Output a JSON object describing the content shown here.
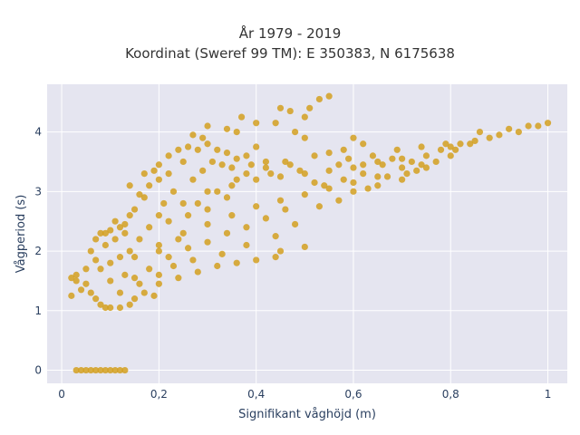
{
  "chart_data": {
    "type": "scatter",
    "title_lines": [
      "År 1979 - 2019",
      "Koordinat (Sweref 99 TM): E 350383, N 6175638"
    ],
    "xlabel": "Signifikant våghöjd (m)",
    "ylabel": "Vågperiod (s)",
    "xlim": [
      -0.03,
      1.04
    ],
    "ylim": [
      -0.22,
      4.8
    ],
    "x_ticks": [
      0,
      0.2,
      0.4,
      0.6,
      0.8,
      1
    ],
    "x_tick_labels": [
      "0",
      "0,2",
      "0,4",
      "0,6",
      "0,8",
      "1"
    ],
    "y_ticks": [
      0,
      1,
      2,
      3,
      4
    ],
    "y_tick_labels": [
      "0",
      "1",
      "2",
      "3",
      "4"
    ],
    "grid": true,
    "marker_color": "#D4A020",
    "plot_background": "#E5E5F0",
    "points": [
      [
        0.03,
        0.0
      ],
      [
        0.04,
        0.0
      ],
      [
        0.05,
        0.0
      ],
      [
        0.06,
        0.0
      ],
      [
        0.07,
        0.0
      ],
      [
        0.08,
        0.0
      ],
      [
        0.09,
        0.0
      ],
      [
        0.1,
        0.0
      ],
      [
        0.11,
        0.0
      ],
      [
        0.12,
        0.0
      ],
      [
        0.13,
        0.0
      ],
      [
        0.02,
        1.55
      ],
      [
        0.03,
        1.5
      ],
      [
        0.03,
        1.6
      ],
      [
        0.02,
        1.25
      ],
      [
        0.04,
        1.35
      ],
      [
        0.05,
        1.45
      ],
      [
        0.06,
        1.3
      ],
      [
        0.07,
        1.2
      ],
      [
        0.08,
        1.1
      ],
      [
        0.09,
        1.05
      ],
      [
        0.1,
        1.05
      ],
      [
        0.12,
        1.05
      ],
      [
        0.14,
        1.1
      ],
      [
        0.06,
        2.0
      ],
      [
        0.07,
        2.2
      ],
      [
        0.08,
        2.3
      ],
      [
        0.1,
        2.35
      ],
      [
        0.12,
        2.4
      ],
      [
        0.11,
        2.5
      ],
      [
        0.13,
        2.3
      ],
      [
        0.14,
        2.6
      ],
      [
        0.15,
        2.7
      ],
      [
        0.17,
        2.9
      ],
      [
        0.18,
        3.1
      ],
      [
        0.19,
        3.35
      ],
      [
        0.2,
        3.45
      ],
      [
        0.22,
        3.6
      ],
      [
        0.24,
        3.7
      ],
      [
        0.26,
        3.75
      ],
      [
        0.28,
        3.7
      ],
      [
        0.3,
        3.8
      ],
      [
        0.32,
        3.7
      ],
      [
        0.34,
        3.65
      ],
      [
        0.36,
        3.55
      ],
      [
        0.38,
        3.6
      ],
      [
        0.4,
        3.75
      ],
      [
        0.27,
        3.95
      ],
      [
        0.29,
        3.9
      ],
      [
        0.3,
        4.1
      ],
      [
        0.34,
        4.05
      ],
      [
        0.36,
        4.0
      ],
      [
        0.37,
        4.25
      ],
      [
        0.4,
        4.15
      ],
      [
        0.44,
        4.15
      ],
      [
        0.45,
        4.4
      ],
      [
        0.47,
        4.35
      ],
      [
        0.48,
        4.0
      ],
      [
        0.5,
        3.9
      ],
      [
        0.5,
        4.25
      ],
      [
        0.51,
        4.4
      ],
      [
        0.53,
        4.55
      ],
      [
        0.55,
        4.6
      ],
      [
        0.58,
        3.7
      ],
      [
        0.6,
        3.9
      ],
      [
        0.62,
        3.8
      ],
      [
        0.15,
        1.2
      ],
      [
        0.17,
        1.3
      ],
      [
        0.2,
        1.45
      ],
      [
        0.24,
        1.55
      ],
      [
        0.28,
        1.65
      ],
      [
        0.32,
        1.75
      ],
      [
        0.36,
        1.8
      ],
      [
        0.4,
        1.85
      ],
      [
        0.44,
        1.9
      ],
      [
        0.45,
        2.0
      ],
      [
        0.5,
        2.07
      ],
      [
        0.15,
        1.9
      ],
      [
        0.2,
        2.1
      ],
      [
        0.25,
        2.3
      ],
      [
        0.3,
        2.45
      ],
      [
        0.35,
        2.6
      ],
      [
        0.4,
        2.75
      ],
      [
        0.45,
        2.85
      ],
      [
        0.5,
        2.95
      ],
      [
        0.55,
        3.05
      ],
      [
        0.6,
        3.15
      ],
      [
        0.65,
        3.25
      ],
      [
        0.7,
        3.4
      ],
      [
        0.72,
        3.5
      ],
      [
        0.75,
        3.6
      ],
      [
        0.78,
        3.7
      ],
      [
        0.8,
        3.75
      ],
      [
        0.82,
        3.8
      ],
      [
        0.2,
        2.6
      ],
      [
        0.25,
        2.8
      ],
      [
        0.3,
        3.0
      ],
      [
        0.35,
        3.1
      ],
      [
        0.4,
        3.2
      ],
      [
        0.45,
        3.25
      ],
      [
        0.5,
        3.3
      ],
      [
        0.55,
        3.35
      ],
      [
        0.6,
        3.4
      ],
      [
        0.65,
        3.5
      ],
      [
        0.7,
        3.55
      ],
      [
        0.6,
        3.0
      ],
      [
        0.65,
        3.1
      ],
      [
        0.7,
        3.2
      ],
      [
        0.75,
        3.4
      ],
      [
        0.8,
        3.6
      ],
      [
        0.85,
        3.85
      ],
      [
        0.86,
        4.0
      ],
      [
        0.88,
        3.9
      ],
      [
        0.9,
        3.95
      ],
      [
        0.92,
        4.05
      ],
      [
        0.94,
        4.0
      ],
      [
        0.96,
        4.1
      ],
      [
        0.98,
        4.1
      ],
      [
        1.0,
        4.15
      ],
      [
        0.08,
        1.7
      ],
      [
        0.1,
        1.8
      ],
      [
        0.12,
        1.9
      ],
      [
        0.09,
        2.1
      ],
      [
        0.14,
        2.0
      ],
      [
        0.16,
        2.2
      ],
      [
        0.18,
        2.4
      ],
      [
        0.2,
        2.0
      ],
      [
        0.22,
        2.5
      ],
      [
        0.24,
        2.2
      ],
      [
        0.26,
        2.6
      ],
      [
        0.28,
        2.8
      ],
      [
        0.3,
        2.7
      ],
      [
        0.32,
        3.0
      ],
      [
        0.34,
        2.9
      ],
      [
        0.36,
        3.2
      ],
      [
        0.38,
        3.3
      ],
      [
        0.42,
        3.4
      ],
      [
        0.46,
        3.5
      ],
      [
        0.52,
        3.6
      ],
      [
        0.55,
        3.65
      ],
      [
        0.15,
        1.55
      ],
      [
        0.18,
        1.7
      ],
      [
        0.22,
        1.9
      ],
      [
        0.26,
        2.05
      ],
      [
        0.3,
        2.15
      ],
      [
        0.34,
        2.3
      ],
      [
        0.38,
        2.4
      ],
      [
        0.42,
        2.55
      ],
      [
        0.46,
        2.7
      ],
      [
        0.54,
        3.1
      ],
      [
        0.58,
        3.2
      ],
      [
        0.62,
        3.3
      ],
      [
        0.66,
        3.45
      ],
      [
        0.68,
        3.55
      ],
      [
        0.2,
        3.2
      ],
      [
        0.16,
        2.95
      ],
      [
        0.14,
        3.1
      ],
      [
        0.17,
        3.3
      ],
      [
        0.22,
        3.3
      ],
      [
        0.25,
        3.5
      ],
      [
        0.33,
        3.45
      ],
      [
        0.42,
        3.5
      ],
      [
        0.47,
        3.45
      ],
      [
        0.52,
        3.15
      ],
      [
        0.57,
        3.45
      ],
      [
        0.12,
        1.3
      ],
      [
        0.1,
        1.5
      ],
      [
        0.13,
        1.6
      ],
      [
        0.16,
        1.45
      ],
      [
        0.19,
        1.25
      ],
      [
        0.2,
        1.6
      ],
      [
        0.23,
        1.75
      ],
      [
        0.27,
        1.85
      ],
      [
        0.33,
        1.95
      ],
      [
        0.38,
        2.1
      ],
      [
        0.44,
        2.25
      ],
      [
        0.48,
        2.45
      ],
      [
        0.53,
        2.75
      ],
      [
        0.57,
        2.85
      ],
      [
        0.63,
        3.05
      ],
      [
        0.67,
        3.25
      ],
      [
        0.73,
        3.35
      ],
      [
        0.77,
        3.5
      ],
      [
        0.05,
        1.7
      ],
      [
        0.07,
        1.85
      ],
      [
        0.09,
        2.3
      ],
      [
        0.11,
        2.2
      ],
      [
        0.13,
        2.45
      ],
      [
        0.21,
        2.8
      ],
      [
        0.23,
        3.0
      ],
      [
        0.27,
        3.2
      ],
      [
        0.29,
        3.35
      ],
      [
        0.31,
        3.5
      ],
      [
        0.35,
        3.4
      ],
      [
        0.39,
        3.45
      ],
      [
        0.43,
        3.3
      ],
      [
        0.49,
        3.35
      ],
      [
        0.59,
        3.55
      ],
      [
        0.64,
        3.6
      ],
      [
        0.69,
        3.7
      ],
      [
        0.74,
        3.75
      ],
      [
        0.79,
        3.8
      ],
      [
        0.81,
        3.7
      ],
      [
        0.84,
        3.8
      ],
      [
        0.74,
        3.45
      ],
      [
        0.71,
        3.3
      ],
      [
        0.62,
        3.45
      ]
    ]
  }
}
